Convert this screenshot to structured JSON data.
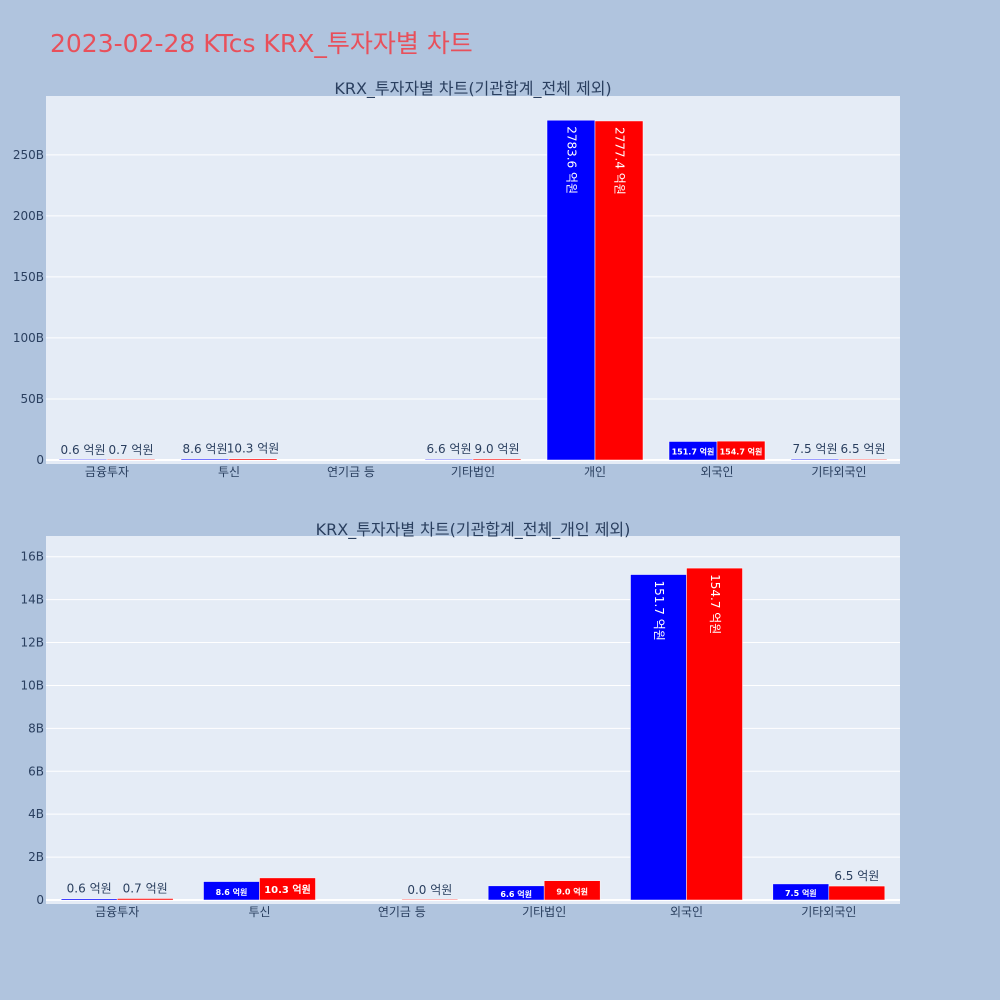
{
  "page_title": "2023-02-28 KTcs KRX_투자자별 차트",
  "colors": {
    "buy": "#0000ff",
    "sell": "#ff0000",
    "plot_bg": "#e5ecf6",
    "paper_bg": "#b0c4de",
    "title": "#e8505b"
  },
  "chart_data": [
    {
      "type": "bar",
      "title": "KRX_투자자별 차트(기관합계_전체 제외)",
      "categories": [
        "금융투자",
        "투신",
        "연기금 등",
        "기타법인",
        "개인",
        "외국인",
        "기타외국인"
      ],
      "series": [
        {
          "color": "#0000ff",
          "values": [
            0.06,
            0.86,
            null,
            0.66,
            278.36,
            15.17,
            0.75
          ],
          "labels": [
            "0.6 억원",
            "8.6 억원",
            "",
            "6.6 억원",
            "2783.6 억원",
            "151.7 억원",
            "7.5 억원"
          ]
        },
        {
          "color": "#ff0000",
          "values": [
            0.07,
            1.03,
            null,
            0.9,
            277.74,
            15.47,
            0.65
          ],
          "labels": [
            "0.7 억원",
            "10.3 억원",
            "",
            "9.0 억원",
            "2777.4 억원",
            "154.7 억원",
            "6.5 억원"
          ]
        }
      ],
      "yunit": "B",
      "ylim": [
        0,
        290
      ],
      "yticks": [
        0,
        50,
        100,
        150,
        200,
        250
      ],
      "ytick_labels": [
        "0",
        "50B",
        "100B",
        "150B",
        "200B",
        "250B"
      ],
      "grid": true,
      "legend": "none"
    },
    {
      "type": "bar",
      "title": "KRX_투자자별 차트(기관합계_전체_개인 제외)",
      "categories": [
        "금융투자",
        "투신",
        "연기금 등",
        "기타법인",
        "외국인",
        "기타외국인"
      ],
      "series": [
        {
          "color": "#0000ff",
          "values": [
            0.06,
            0.86,
            null,
            0.66,
            15.17,
            0.75
          ],
          "labels": [
            "0.6 억원",
            "8.6 억원",
            "",
            "6.6 억원",
            "151.7 억원",
            "7.5 억원"
          ]
        },
        {
          "color": "#ff0000",
          "values": [
            0.07,
            1.03,
            0.0,
            0.9,
            15.47,
            0.65
          ],
          "labels": [
            "0.7 억원",
            "10.3 억원",
            "0.0 억원",
            "9.0 억원",
            "154.7 억원",
            "6.5 억원"
          ]
        }
      ],
      "yunit": "B",
      "ylim": [
        0,
        16.5
      ],
      "yticks": [
        0,
        2,
        4,
        6,
        8,
        10,
        12,
        14,
        16
      ],
      "ytick_labels": [
        "0",
        "2B",
        "4B",
        "6B",
        "8B",
        "10B",
        "12B",
        "14B",
        "16B"
      ],
      "grid": true,
      "legend": "none"
    }
  ]
}
